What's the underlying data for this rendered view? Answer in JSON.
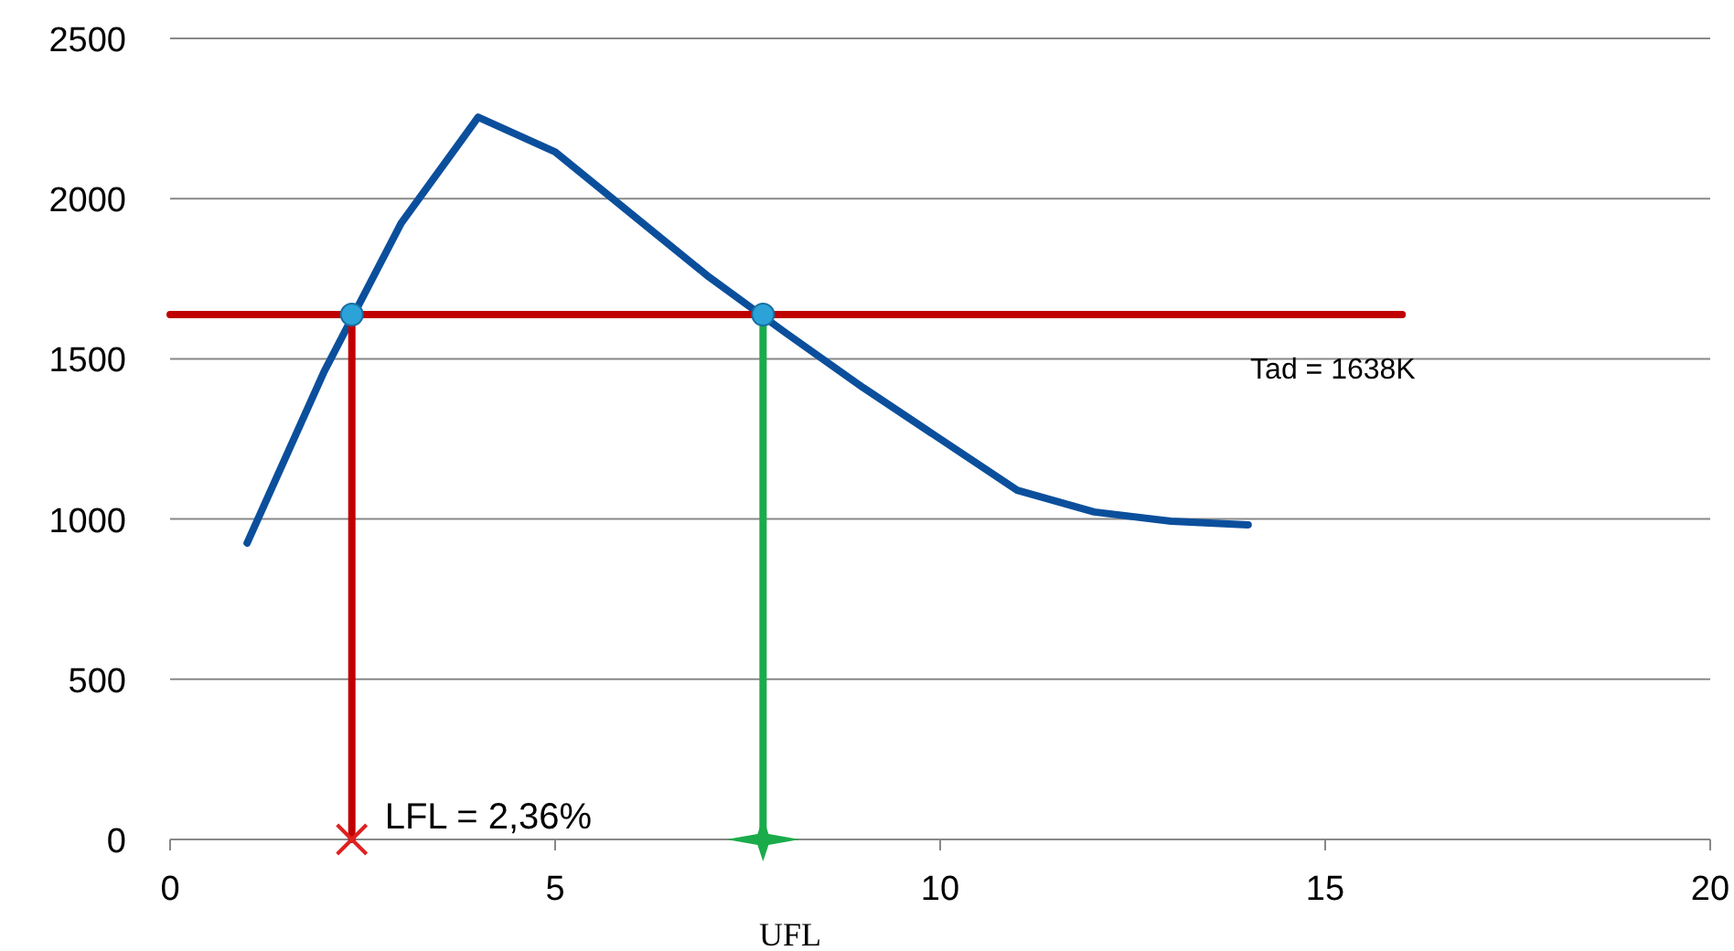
{
  "chart_data": {
    "type": "line",
    "xlim": [
      0,
      20
    ],
    "xticks": [
      0,
      5,
      10,
      15,
      20
    ],
    "ylim": [
      0,
      2500
    ],
    "yticks": [
      0,
      500,
      1000,
      1500,
      2000,
      2500
    ],
    "grid": "y",
    "series": [
      {
        "color": "#0b4f9c",
        "marker": "none",
        "x": [
          1,
          2,
          3,
          4,
          5,
          6,
          7,
          8,
          9,
          10,
          11,
          12,
          13,
          14
        ],
        "values": [
          925,
          1460,
          1923,
          2254,
          2146,
          1950,
          1755,
          1580,
          1410,
          1250,
          1090,
          1022,
          993,
          982
        ]
      },
      {
        "color": "#c00000",
        "marker": "none",
        "x": [
          0,
          16
        ],
        "values": [
          1638,
          1638
        ]
      },
      {
        "color": "#c00000",
        "marker": "none",
        "x": [
          2.36,
          2.36
        ],
        "values": [
          1638,
          0
        ]
      },
      {
        "color": "#1aab4a",
        "marker": "none",
        "x": [
          7.7,
          7.7
        ],
        "values": [
          1638,
          0
        ]
      },
      {
        "type": "scatter",
        "color": "#2ba3d8",
        "marker": "circle",
        "x": [
          2.36,
          7.7
        ],
        "values": [
          1638,
          1638
        ]
      },
      {
        "type": "scatter",
        "color": "#e02020",
        "marker": "cross",
        "x": [
          2.36
        ],
        "values": [
          0
        ]
      },
      {
        "type": "scatter",
        "color": "#1aab4a",
        "marker": "star",
        "x": [
          7.7
        ],
        "values": [
          0
        ]
      }
    ],
    "annotations": [
      {
        "text": "LFL = 2,36%",
        "x": 2.36,
        "y": 0
      },
      {
        "text": "Tad = 1638K",
        "x": 13.6,
        "y": 1638
      },
      "UFL"
    ]
  }
}
